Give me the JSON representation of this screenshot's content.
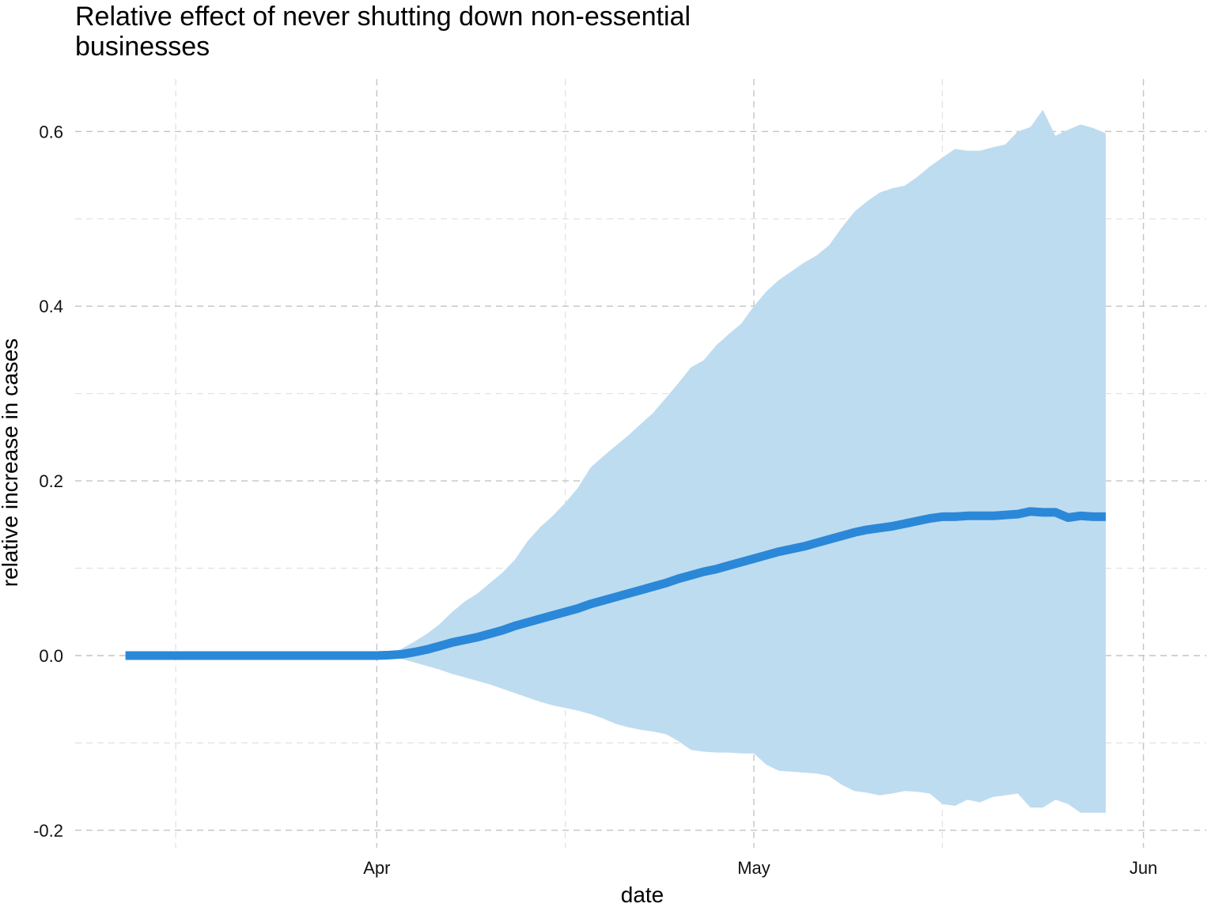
{
  "chart_data": {
    "type": "line",
    "title_lines": [
      "Relative effect of never shutting down non-essential",
      "businesses"
    ],
    "xlabel": "date",
    "ylabel": "relative increase in cases",
    "x_start": "2020-03-12",
    "x_ticks": [
      {
        "date": "2020-04-01",
        "label": "Apr"
      },
      {
        "date": "2020-05-01",
        "label": "May"
      },
      {
        "date": "2020-06-01",
        "label": "Jun"
      }
    ],
    "x_minor_ticks": [
      "2020-03-16",
      "2020-04-16",
      "2020-05-16"
    ],
    "xlim": [
      "2020-03-08",
      "2020-06-06"
    ],
    "y_ticks": [
      -0.2,
      0.0,
      0.2,
      0.4,
      0.6
    ],
    "y_tick_labels": [
      "-0.2",
      "0.0",
      "0.2",
      "0.4",
      "0.6"
    ],
    "y_minor_ticks": [
      -0.1,
      0.1,
      0.3,
      0.5
    ],
    "ylim": [
      -0.22,
      0.66
    ],
    "grid": true,
    "series": [
      {
        "line_color": "#2b88d8",
        "band_color": "#bedcf0",
        "mean": [
          0,
          0,
          0,
          0,
          0,
          0,
          0,
          0,
          0,
          0,
          0,
          0,
          0,
          0,
          0,
          0,
          0,
          0,
          0,
          0,
          0,
          0.0005,
          0.0015,
          0.004,
          0.007,
          0.011,
          0.015,
          0.018,
          0.021,
          0.025,
          0.029,
          0.034,
          0.038,
          0.042,
          0.046,
          0.05,
          0.054,
          0.059,
          0.063,
          0.067,
          0.071,
          0.075,
          0.079,
          0.083,
          0.088,
          0.092,
          0.096,
          0.099,
          0.103,
          0.107,
          0.111,
          0.115,
          0.119,
          0.122,
          0.125,
          0.129,
          0.133,
          0.137,
          0.141,
          0.144,
          0.146,
          0.148,
          0.151,
          0.154,
          0.157,
          0.159,
          0.159,
          0.16,
          0.16,
          0.16,
          0.161,
          0.162,
          0.165,
          0.164,
          0.164,
          0.158,
          0.16,
          0.159,
          0.159
        ],
        "upper": [
          0,
          0,
          0,
          0,
          0,
          0,
          0,
          0,
          0,
          0,
          0,
          0,
          0,
          0,
          0,
          0,
          0,
          0,
          0,
          0,
          0,
          0.002,
          0.008,
          0.016,
          0.025,
          0.036,
          0.05,
          0.062,
          0.071,
          0.083,
          0.095,
          0.11,
          0.131,
          0.147,
          0.16,
          0.175,
          0.192,
          0.215,
          0.228,
          0.24,
          0.252,
          0.265,
          0.278,
          0.295,
          0.312,
          0.33,
          0.338,
          0.355,
          0.368,
          0.38,
          0.4,
          0.417,
          0.43,
          0.44,
          0.45,
          0.458,
          0.47,
          0.49,
          0.508,
          0.52,
          0.53,
          0.535,
          0.538,
          0.548,
          0.56,
          0.57,
          0.58,
          0.578,
          0.578,
          0.582,
          0.585,
          0.6,
          0.605,
          0.625,
          0.595,
          0.602,
          0.608,
          0.604,
          0.598
        ],
        "lower": [
          0,
          0,
          0,
          0,
          0,
          0,
          0,
          0,
          0,
          0,
          0,
          0,
          0,
          0,
          0,
          0,
          0,
          0,
          0,
          0,
          0,
          -0.0015,
          -0.004,
          -0.008,
          -0.012,
          -0.016,
          -0.021,
          -0.025,
          -0.029,
          -0.033,
          -0.038,
          -0.043,
          -0.048,
          -0.053,
          -0.057,
          -0.06,
          -0.063,
          -0.067,
          -0.072,
          -0.078,
          -0.082,
          -0.085,
          -0.087,
          -0.09,
          -0.098,
          -0.108,
          -0.11,
          -0.111,
          -0.111,
          -0.112,
          -0.112,
          -0.125,
          -0.132,
          -0.133,
          -0.134,
          -0.135,
          -0.138,
          -0.148,
          -0.155,
          -0.157,
          -0.16,
          -0.158,
          -0.155,
          -0.156,
          -0.158,
          -0.17,
          -0.172,
          -0.165,
          -0.168,
          -0.162,
          -0.16,
          -0.158,
          -0.174,
          -0.174,
          -0.165,
          -0.17,
          -0.18,
          -0.18,
          -0.18
        ]
      }
    ]
  }
}
